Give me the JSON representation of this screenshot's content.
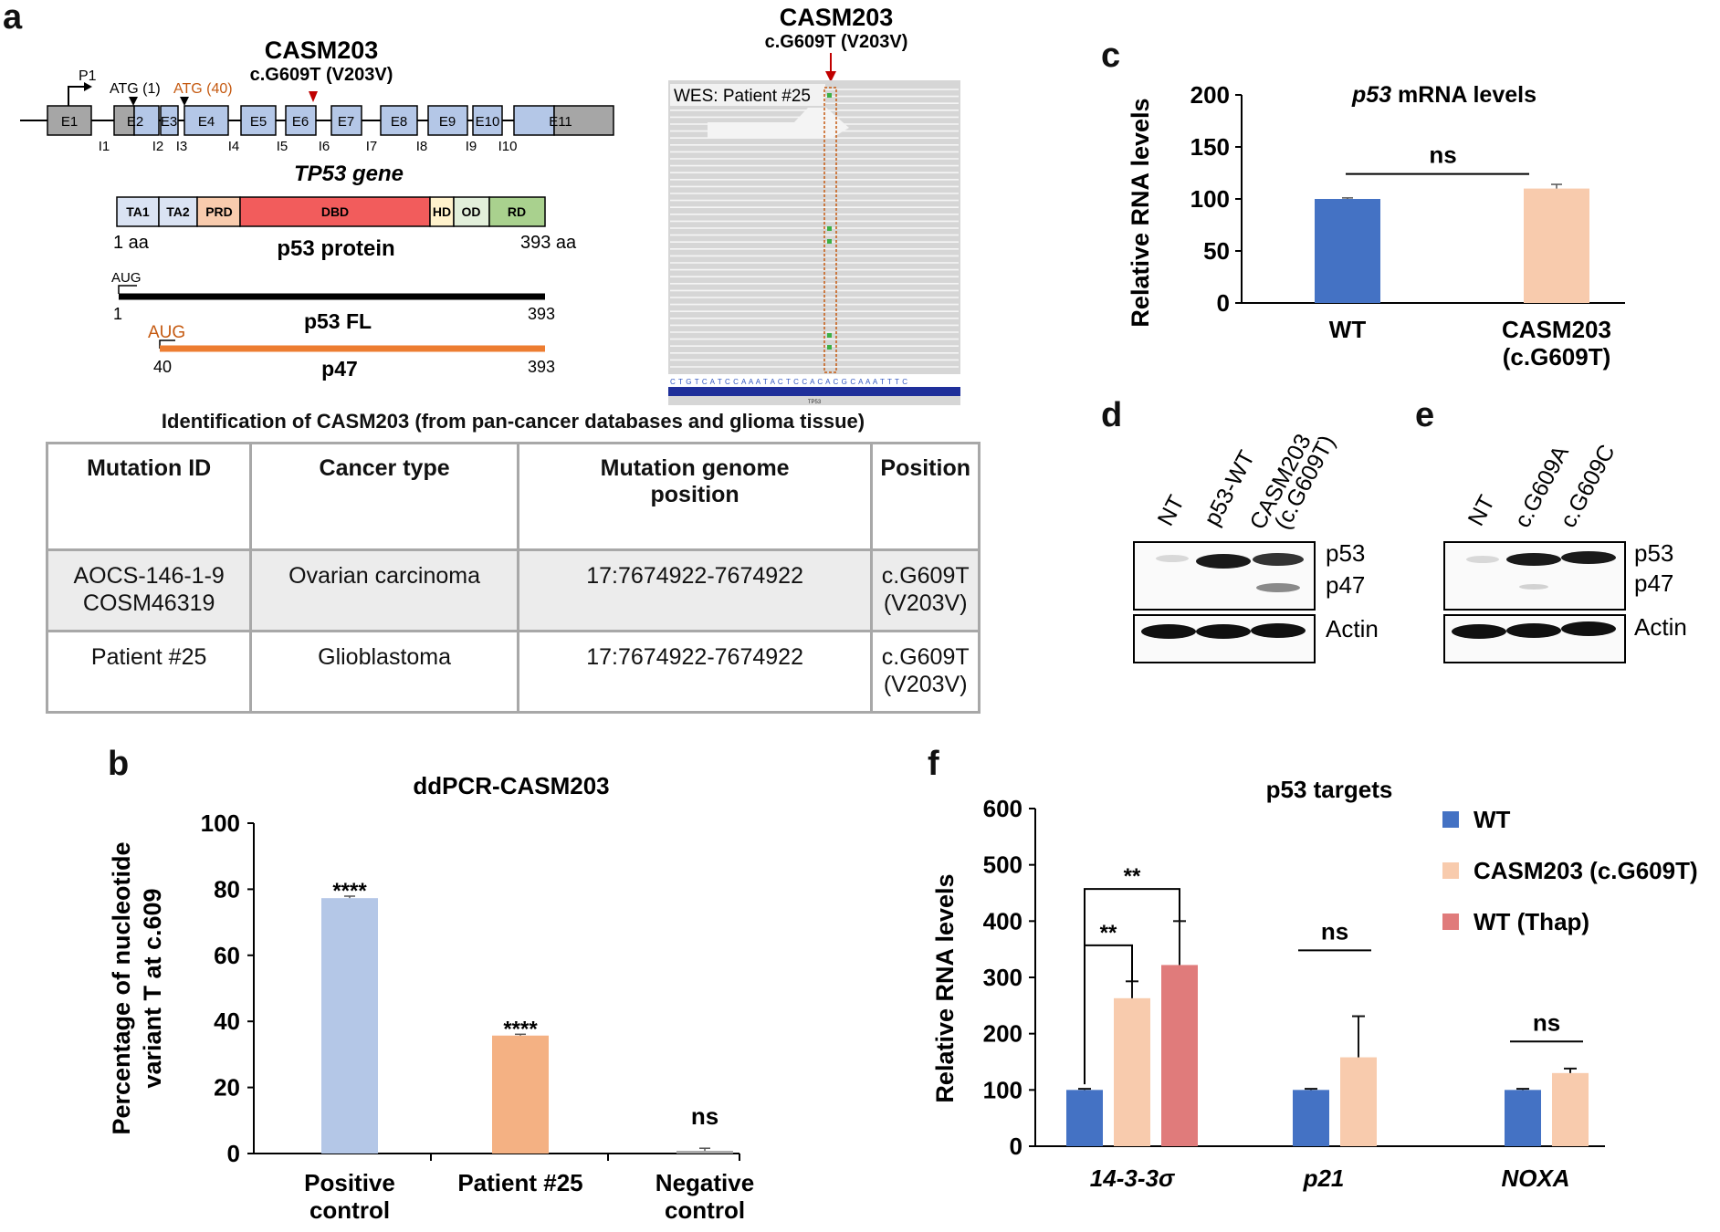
{
  "panel_letters": {
    "a": "a",
    "b": "b",
    "c": "c",
    "d": "d",
    "e": "e",
    "f": "f"
  },
  "panel_a": {
    "gene_mutation_title": "CASM203",
    "gene_mutation_subtitle": "c.G609T (V203V)",
    "promoter_label": "P1",
    "atg1_label": "ATG (1)",
    "atg40_label": "ATG (40)",
    "exons": [
      "E1",
      "E2",
      "E3",
      "E4",
      "E5",
      "E6",
      "E7",
      "E8",
      "E9",
      "E10",
      "E11"
    ],
    "introns": [
      "I1",
      "I2",
      "I3",
      "I4",
      "I5",
      "I6",
      "I7",
      "I8",
      "I9",
      "I10"
    ],
    "gene_label": "TP53 gene",
    "domains": [
      "TA1",
      "TA2",
      "PRD",
      "DBD",
      "HD",
      "OD",
      "RD"
    ],
    "protein_start": "1 aa",
    "protein_end": "393 aa",
    "protein_label": "p53 protein",
    "fl_aug": "AUG",
    "fl_start": "1",
    "fl_end": "393",
    "fl_label": "p53 FL",
    "p47_aug": "AUG",
    "p47_start": "40",
    "p47_end": "393",
    "p47_label": "p47",
    "wes_title": "CASM203",
    "wes_subtitle": "c.G609T (V203V)",
    "wes_label": "WES: Patient #25",
    "wes_sequence": "C T G T C A T C C A A A T A C T C C A C A C G C A A A T T T C",
    "wes_gene": "TP53",
    "table_title": "Identification of CASM203 (from pan-cancer databases and glioma tissue)",
    "table_headers": [
      "Mutation ID",
      "Cancer type",
      "Mutation genome position",
      "Position"
    ],
    "table_rows": [
      {
        "id_line1": "AOCS-146-1-9",
        "id_line2": "COSM46319",
        "cancer": "Ovarian carcinoma",
        "genome": "17:7674922-7674922",
        "pos_line1": "c.G609T",
        "pos_line2": "(V203V)"
      },
      {
        "id_line1": "Patient #25",
        "id_line2": "",
        "cancer": "Glioblastoma",
        "genome": "17:7674922-7674922",
        "pos_line1": "c.G609T",
        "pos_line2": "(V203V)"
      }
    ]
  },
  "panel_d": {
    "lanes": [
      "NT",
      "p53-WT",
      "CASM203",
      "(c.G609T)"
    ],
    "bands": [
      "p53",
      "p47",
      "Actin"
    ]
  },
  "panel_e": {
    "lanes": [
      "NT",
      "c.G609A",
      "c.G609C"
    ],
    "bands": [
      "p53",
      "p47",
      "Actin"
    ]
  },
  "chart_data": [
    {
      "id": "c",
      "type": "bar",
      "title": "p53 mRNA levels",
      "title_italic_part": "p53",
      "title_rest": " mRNA levels",
      "ylabel": "Relative RNA levels",
      "ylim": [
        0,
        200
      ],
      "yticks": [
        0,
        50,
        100,
        150,
        200
      ],
      "categories": [
        "WT",
        "CASM203 (c.G609T)"
      ],
      "category_lines": [
        [
          "WT"
        ],
        [
          "CASM203",
          "(c.G609T)"
        ]
      ],
      "values": [
        100,
        110
      ],
      "errors": [
        1,
        4
      ],
      "colors": [
        "#4472c4",
        "#f8cbad"
      ],
      "significance": "ns"
    },
    {
      "id": "b",
      "type": "bar",
      "title": "ddPCR-CASM203",
      "ylabel_lines": [
        "Percentage of nucleotide",
        "variant T at c.609"
      ],
      "ylim": [
        0,
        100
      ],
      "yticks": [
        0,
        20,
        40,
        60,
        80,
        100
      ],
      "categories": [
        "Positive control",
        "Patient #25",
        "Negative control"
      ],
      "category_lines": [
        [
          "Positive",
          "control"
        ],
        [
          "Patient #25"
        ],
        [
          "Negative",
          "control"
        ]
      ],
      "values": [
        77.3,
        35.7,
        0.8
      ],
      "errors": [
        0.6,
        0.4,
        0.8
      ],
      "colors": [
        "#b4c7e7",
        "#f4b183",
        "#a6a6a6"
      ],
      "significance": [
        "****",
        "****",
        "ns"
      ]
    },
    {
      "id": "f",
      "type": "bar",
      "title": "p53 targets",
      "ylabel": "Relative RNA levels",
      "ylim": [
        0,
        600
      ],
      "yticks": [
        0,
        100,
        200,
        300,
        400,
        500,
        600
      ],
      "categories": [
        "14-3-3σ",
        "p21",
        "NOXA"
      ],
      "series": [
        {
          "name": "WT",
          "color": "#4472c4",
          "values": [
            100,
            100,
            100
          ],
          "errors": [
            2,
            2,
            2
          ]
        },
        {
          "name": "CASM203 (c.G609T)",
          "color": "#f8cbad",
          "values": [
            263,
            158,
            130
          ],
          "errors": [
            30,
            73,
            8
          ]
        },
        {
          "name": "WT (Thap)",
          "color": "#e07b7b",
          "values": [
            322,
            null,
            null
          ],
          "errors": [
            78,
            null,
            null
          ]
        }
      ],
      "significance": [
        "**",
        "**",
        "ns",
        "ns"
      ]
    }
  ]
}
